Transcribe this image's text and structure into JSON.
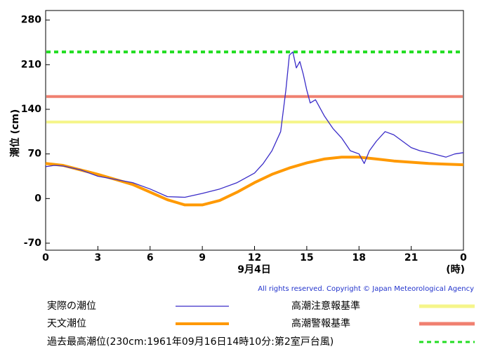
{
  "chart_data": {
    "type": "line",
    "y_label": "潮位 (cm)",
    "x_label": "9月4日",
    "x_unit": "(時)",
    "copyright": "All rights reserved. Copyright © Japan Meteorological Agency",
    "xlim": [
      0,
      24
    ],
    "xticks": [
      0,
      3,
      6,
      9,
      12,
      15,
      18,
      21,
      {
        "value": 24,
        "label": "0"
      }
    ],
    "ylim": [
      -81,
      295
    ],
    "yticks": [
      -70,
      0,
      70,
      140,
      210,
      280
    ],
    "series": [
      {
        "name": "実際の潮位",
        "color": "#3a2cc8",
        "width": 1.3,
        "x": [
          0,
          0.5,
          1,
          2,
          3,
          4,
          5,
          6,
          7,
          8,
          9,
          10,
          11,
          12,
          12.5,
          13,
          13.5,
          13.8,
          14,
          14.2,
          14.4,
          14.6,
          14.8,
          15,
          15.2,
          15.5,
          16,
          16.5,
          17,
          17.5,
          18,
          18.3,
          18.6,
          19,
          19.5,
          20,
          20.5,
          21,
          21.5,
          22,
          23,
          23.5,
          24
        ],
        "values": [
          50,
          52,
          51,
          45,
          35,
          30,
          25,
          15,
          3,
          2,
          8,
          15,
          25,
          40,
          55,
          75,
          105,
          170,
          225,
          230,
          205,
          215,
          195,
          170,
          150,
          155,
          130,
          110,
          95,
          75,
          70,
          55,
          75,
          90,
          105,
          100,
          90,
          80,
          75,
          72,
          65,
          70,
          72
        ]
      },
      {
        "name": "天文潮位",
        "color": "#ff9900",
        "width": 4,
        "x": [
          0,
          1,
          2,
          3,
          4,
          5,
          6,
          7,
          8,
          9,
          10,
          11,
          12,
          13,
          14,
          15,
          16,
          17,
          18,
          19,
          20,
          21,
          22,
          23,
          24
        ],
        "values": [
          55,
          52,
          45,
          38,
          30,
          22,
          10,
          -2,
          -10,
          -10,
          -3,
          10,
          25,
          38,
          48,
          56,
          62,
          65,
          65,
          62,
          59,
          57,
          55,
          54,
          53
        ]
      }
    ],
    "reference_lines": [
      {
        "name": "高潮注意報基準",
        "value": 120,
        "color": "#f5f58a",
        "dashed": false
      },
      {
        "name": "高潮警報基準",
        "value": 160,
        "color": "#f08070",
        "dashed": false
      },
      {
        "name": "過去最高潮位(230cm:1961年09月16日14時10分:第2室戸台風)",
        "value": 230,
        "color": "#22dd22",
        "dashed": true
      }
    ]
  }
}
